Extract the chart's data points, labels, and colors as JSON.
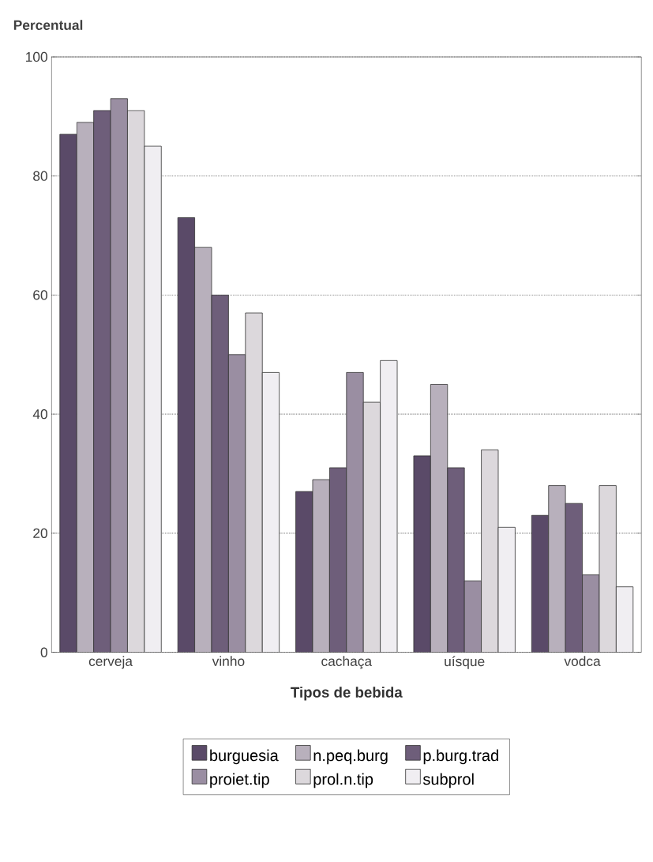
{
  "chart_data": {
    "type": "bar",
    "ylabel": "Percentual",
    "xlabel": "Tipos de bebida",
    "categories": [
      "cerveja",
      "vinho",
      "cachaça",
      "uísque",
      "vodca"
    ],
    "series": [
      {
        "name": "burguesia",
        "color": "#5a4a68",
        "values": [
          87,
          73,
          27,
          33,
          23
        ]
      },
      {
        "name": "n.peq.burg",
        "color": "#b8b0bc",
        "values": [
          89,
          68,
          29,
          45,
          28
        ]
      },
      {
        "name": "p.burg.trad",
        "color": "#6e5e7a",
        "values": [
          91,
          60,
          31,
          31,
          25
        ]
      },
      {
        "name": "proiet.tip",
        "color": "#9a8ea2",
        "values": [
          93,
          50,
          47,
          12,
          13
        ]
      },
      {
        "name": "prol.n.tip",
        "color": "#dcd8dc",
        "values": [
          91,
          57,
          42,
          34,
          28
        ]
      },
      {
        "name": "subprol",
        "color": "#f0eef2",
        "values": [
          85,
          47,
          49,
          21,
          11
        ]
      }
    ],
    "ylim": [
      0,
      100
    ],
    "yticks": [
      0,
      20,
      40,
      60,
      80,
      100
    ],
    "grid": "y",
    "legend": "bottom"
  }
}
